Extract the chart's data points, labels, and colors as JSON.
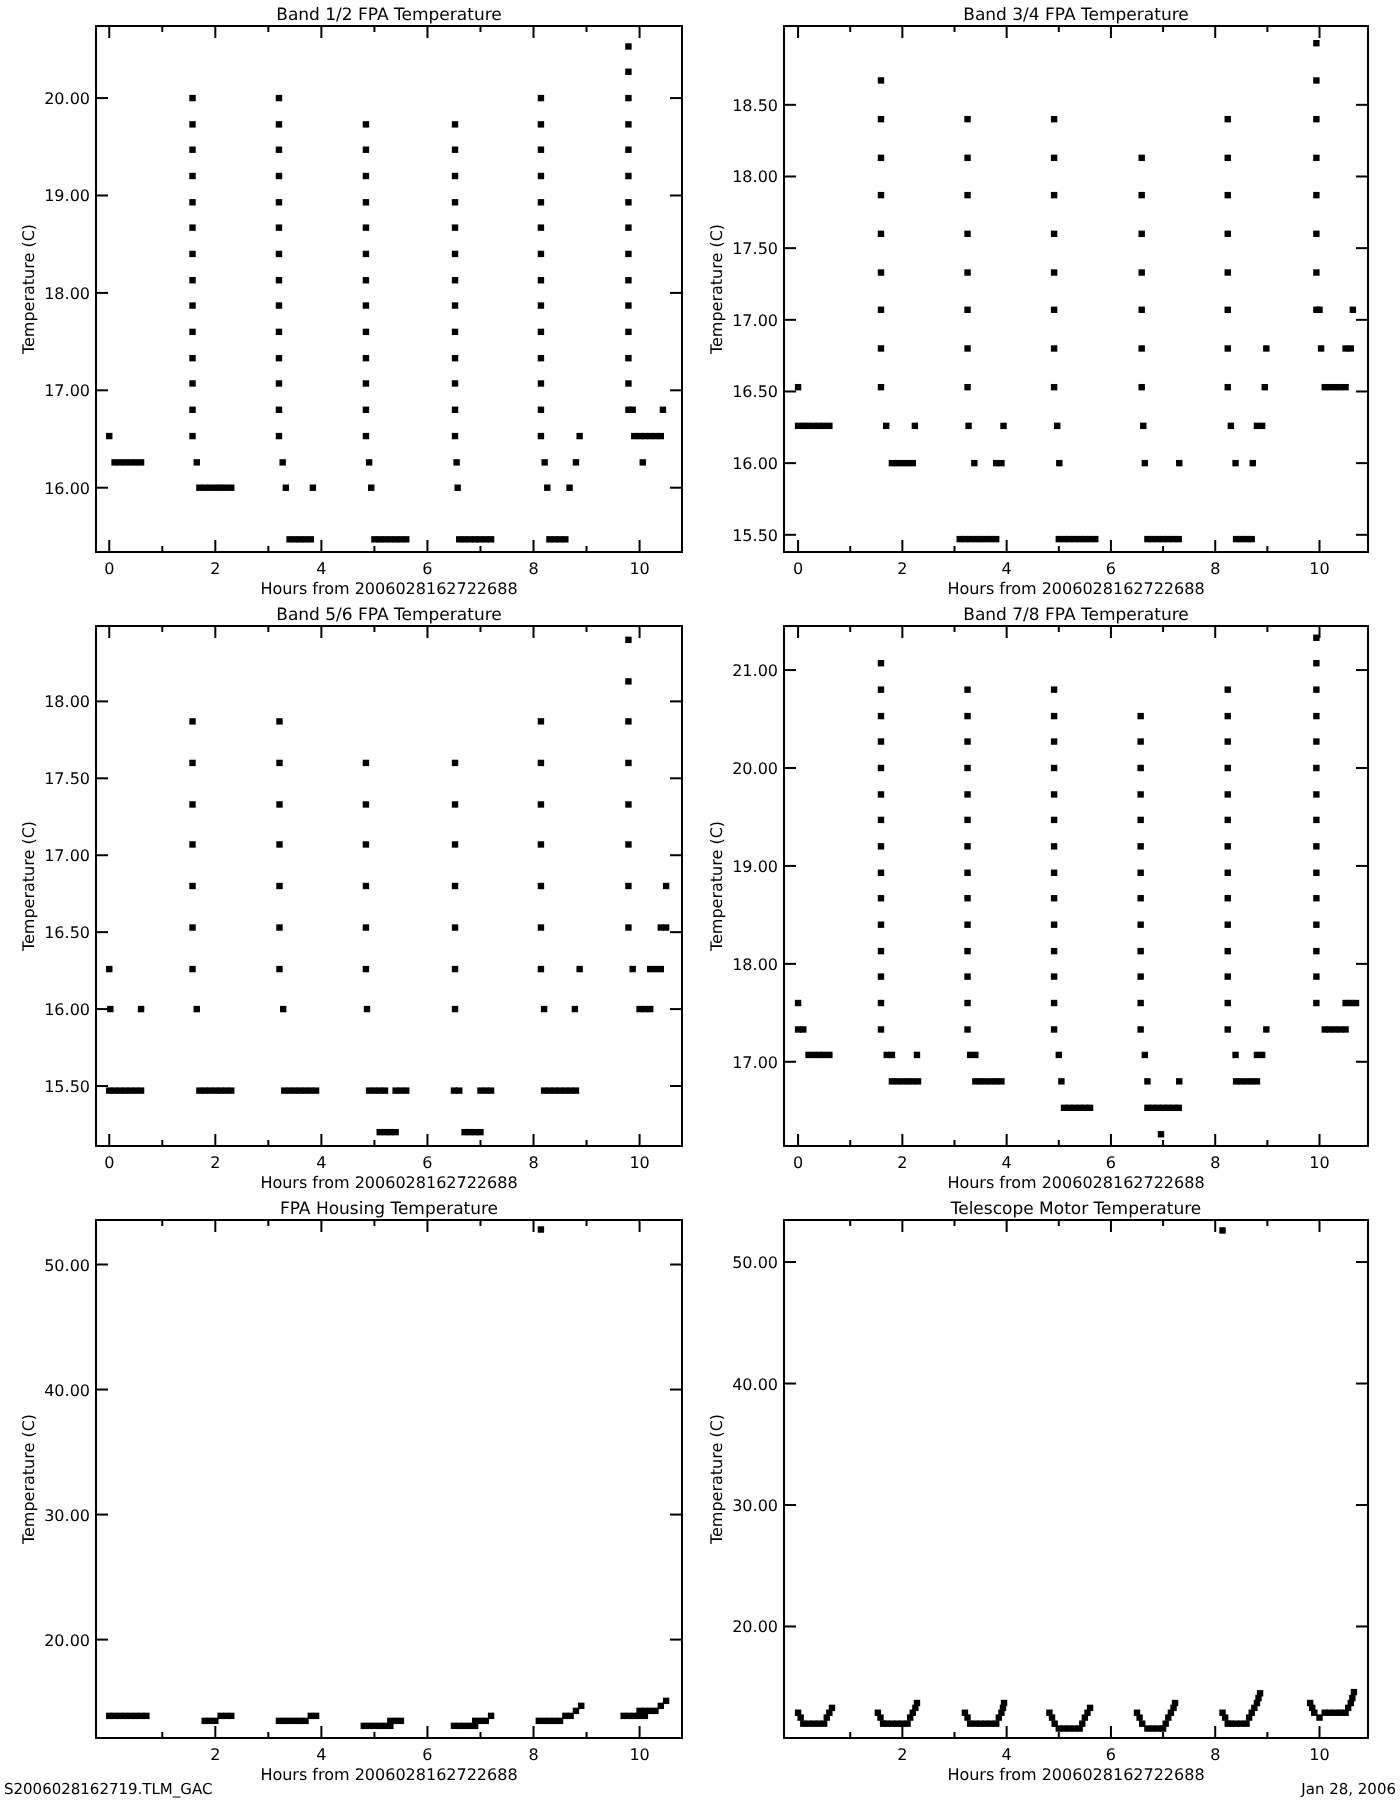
{
  "chart_data": [
    {
      "type": "scatter",
      "title": "Band 1/2 FPA Temperature",
      "xlabel": "Hours from 2006028162722688",
      "ylabel": "Temperature (C)",
      "marker": "square",
      "xlim": [
        -0.25,
        10.8
      ],
      "ylim": [
        15.34,
        20.74
      ],
      "xticks": [
        0,
        {
          "value": 1,
          "label": null
        },
        2,
        {
          "value": 3,
          "label": null
        },
        4,
        {
          "value": 5,
          "label": null
        },
        6,
        {
          "value": 7,
          "label": null
        },
        8,
        {
          "value": 9,
          "label": null
        },
        10
      ],
      "yticks": [
        {
          "value": 16,
          "label": "16.00"
        },
        {
          "value": 17,
          "label": "17.00"
        },
        {
          "value": 18,
          "label": "18.00"
        },
        {
          "value": 19,
          "label": "19.00"
        },
        {
          "value": 20,
          "label": "20.00"
        }
      ],
      "series": [
        {
          "color": "#000000",
          "x": [
            0,
            0.1,
            0.2,
            0.3,
            0.4,
            0.5,
            0.6,
            1.57,
            1.57,
            1.57,
            1.57,
            1.57,
            1.57,
            1.57,
            1.57,
            1.57,
            1.57,
            1.57,
            1.57,
            1.57,
            1.57,
            1.65,
            1.7,
            1.8,
            1.9,
            2.0,
            2.1,
            2.2,
            2.3,
            3.2,
            3.2,
            3.2,
            3.2,
            3.2,
            3.2,
            3.2,
            3.2,
            3.2,
            3.2,
            3.2,
            3.2,
            3.2,
            3.2,
            3.27,
            3.33,
            3.84,
            3.4,
            3.5,
            3.6,
            3.7,
            3.8,
            4.84,
            4.84,
            4.84,
            4.84,
            4.84,
            4.84,
            4.84,
            4.84,
            4.84,
            4.84,
            4.84,
            4.84,
            4.84,
            4.9,
            4.94,
            5.0,
            5.1,
            5.2,
            5.3,
            5.4,
            5.5,
            5.6,
            6.52,
            6.52,
            6.52,
            6.52,
            6.52,
            6.52,
            6.52,
            6.52,
            6.52,
            6.52,
            6.52,
            6.52,
            6.52,
            6.55,
            6.57,
            6.6,
            6.7,
            6.8,
            6.9,
            7.0,
            7.1,
            7.2,
            8.14,
            8.14,
            8.14,
            8.14,
            8.14,
            8.14,
            8.14,
            8.14,
            8.14,
            8.14,
            8.14,
            8.14,
            8.14,
            8.14,
            8.21,
            8.26,
            8.3,
            8.4,
            8.5,
            8.6,
            8.68,
            8.8,
            8.87,
            9.79,
            9.79,
            9.79,
            9.79,
            9.79,
            9.79,
            9.79,
            9.79,
            9.79,
            9.79,
            9.79,
            9.79,
            9.79,
            9.79,
            9.79,
            9.87,
            9.9,
            10.0,
            10.1,
            10.2,
            10.3,
            10.4,
            10.06,
            10.44
          ],
          "values": [
            16.53,
            16.26,
            16.26,
            16.26,
            16.26,
            16.26,
            16.26,
            16.53,
            16.8,
            17.07,
            17.33,
            17.6,
            17.87,
            18.13,
            18.4,
            18.67,
            18.93,
            19.2,
            19.47,
            19.73,
            20.0,
            16.26,
            16.0,
            16.0,
            16.0,
            16.0,
            16.0,
            16.0,
            16.0,
            16.53,
            16.8,
            17.07,
            17.33,
            17.6,
            17.87,
            18.13,
            18.4,
            18.67,
            18.93,
            19.2,
            19.47,
            19.73,
            20.0,
            16.26,
            16.0,
            16.0,
            15.47,
            15.47,
            15.47,
            15.47,
            15.47,
            16.53,
            16.8,
            17.07,
            17.33,
            17.6,
            17.87,
            18.13,
            18.4,
            18.67,
            18.93,
            19.2,
            19.47,
            19.73,
            16.26,
            16.0,
            15.47,
            15.47,
            15.47,
            15.47,
            15.47,
            15.47,
            15.47,
            16.53,
            16.8,
            17.07,
            17.33,
            17.6,
            17.87,
            18.13,
            18.4,
            18.67,
            18.93,
            19.2,
            19.47,
            19.73,
            16.26,
            16.0,
            15.47,
            15.47,
            15.47,
            15.47,
            15.47,
            15.47,
            15.47,
            16.53,
            16.8,
            17.07,
            17.33,
            17.6,
            17.87,
            18.13,
            18.4,
            18.67,
            18.93,
            19.2,
            19.47,
            19.73,
            20.0,
            16.26,
            16.0,
            15.47,
            15.47,
            15.47,
            15.47,
            16.0,
            16.26,
            16.53,
            16.8,
            17.07,
            17.33,
            17.6,
            17.87,
            18.13,
            18.4,
            18.67,
            18.93,
            19.2,
            19.47,
            19.73,
            20.0,
            20.27,
            20.53,
            16.8,
            16.53,
            16.53,
            16.53,
            16.53,
            16.53,
            16.53,
            16.26,
            16.8
          ]
        }
      ]
    },
    {
      "type": "scatter",
      "title": "Band 3/4 FPA Temperature",
      "xlabel": "Hours from 2006028162722688",
      "ylabel": "Temperature (C)",
      "marker": "square",
      "xlim": [
        -0.27,
        10.93
      ],
      "ylim": [
        15.38,
        19.05
      ],
      "xticks": [
        0,
        {
          "value": 1,
          "label": null
        },
        2,
        {
          "value": 3,
          "label": null
        },
        4,
        {
          "value": 5,
          "label": null
        },
        6,
        {
          "value": 7,
          "label": null
        },
        8,
        {
          "value": 9,
          "label": null
        },
        10
      ],
      "yticks": [
        {
          "value": 15.5,
          "label": "15.50"
        },
        {
          "value": 16,
          "label": "16.00"
        },
        {
          "value": 16.5,
          "label": "16.50"
        },
        {
          "value": 17,
          "label": "17.00"
        },
        {
          "value": 17.5,
          "label": "17.50"
        },
        {
          "value": 18,
          "label": "18.00"
        },
        {
          "value": 18.5,
          "label": "18.50"
        }
      ],
      "series": [
        {
          "color": "#000000",
          "x": [
            0,
            0,
            0.1,
            0.2,
            0.3,
            0.4,
            0.5,
            0.6,
            1.59,
            1.59,
            1.59,
            1.59,
            1.59,
            1.59,
            1.59,
            1.59,
            1.59,
            1.69,
            1.8,
            1.9,
            2.0,
            2.1,
            2.2,
            2.24,
            3.25,
            3.25,
            3.25,
            3.25,
            3.25,
            3.25,
            3.25,
            3.25,
            3.27,
            3.38,
            3.8,
            3.9,
            3.94,
            3.1,
            3.2,
            3.3,
            3.4,
            3.5,
            3.6,
            3.7,
            3.8,
            4.91,
            4.91,
            4.91,
            4.91,
            4.91,
            4.91,
            4.91,
            4.91,
            4.97,
            5.01,
            5.0,
            5.1,
            5.2,
            5.3,
            5.4,
            5.5,
            5.6,
            5.7,
            6.59,
            6.59,
            6.59,
            6.59,
            6.59,
            6.59,
            6.59,
            6.62,
            6.65,
            7.31,
            6.7,
            6.8,
            6.9,
            7.0,
            7.1,
            7.2,
            7.3,
            8.24,
            8.24,
            8.24,
            8.24,
            8.24,
            8.24,
            8.24,
            8.24,
            8.3,
            8.39,
            8.72,
            8.4,
            8.5,
            8.6,
            8.7,
            8.8,
            8.9,
            8.95,
            8.98,
            9.94,
            9.94,
            9.94,
            9.94,
            9.94,
            9.94,
            9.94,
            9.94,
            10.0,
            10.03,
            10.1,
            10.2,
            10.3,
            10.4,
            10.5,
            10.5,
            10.6,
            10.64
          ],
          "values": [
            16.53,
            16.26,
            16.26,
            16.26,
            16.26,
            16.26,
            16.26,
            16.26,
            16.53,
            16.8,
            17.07,
            17.33,
            17.6,
            17.87,
            18.13,
            18.4,
            18.67,
            16.26,
            16.0,
            16.0,
            16.0,
            16.0,
            16.0,
            16.26,
            16.53,
            16.8,
            17.07,
            17.33,
            17.6,
            17.87,
            18.13,
            18.4,
            16.26,
            16.0,
            16.0,
            16.0,
            16.26,
            15.47,
            15.47,
            15.47,
            15.47,
            15.47,
            15.47,
            15.47,
            15.47,
            16.53,
            16.8,
            17.07,
            17.33,
            17.6,
            17.87,
            18.13,
            18.4,
            16.26,
            16.0,
            15.47,
            15.47,
            15.47,
            15.47,
            15.47,
            15.47,
            15.47,
            15.47,
            16.53,
            16.8,
            17.07,
            17.33,
            17.6,
            17.87,
            18.13,
            16.26,
            16.0,
            16.0,
            15.47,
            15.47,
            15.47,
            15.47,
            15.47,
            15.47,
            15.47,
            16.53,
            16.8,
            17.07,
            17.33,
            17.6,
            17.87,
            18.13,
            18.4,
            16.26,
            16.0,
            16.0,
            15.47,
            15.47,
            15.47,
            15.47,
            16.26,
            16.26,
            16.53,
            16.8,
            17.07,
            17.33,
            17.6,
            17.87,
            18.13,
            18.4,
            18.67,
            18.93,
            17.07,
            16.8,
            16.53,
            16.53,
            16.53,
            16.53,
            16.53,
            16.8,
            16.8,
            17.07
          ]
        }
      ]
    },
    {
      "type": "scatter",
      "title": "Band 5/6 FPA Temperature",
      "xlabel": "Hours from 2006028162722688",
      "ylabel": "Temperature (C)",
      "marker": "square",
      "xlim": [
        -0.25,
        10.8
      ],
      "ylim": [
        15.11,
        18.49
      ],
      "xticks": [
        0,
        {
          "value": 1,
          "label": null
        },
        2,
        {
          "value": 3,
          "label": null
        },
        4,
        {
          "value": 5,
          "label": null
        },
        6,
        {
          "value": 7,
          "label": null
        },
        8,
        {
          "value": 9,
          "label": null
        },
        10
      ],
      "yticks": [
        {
          "value": 15.5,
          "label": "15.50"
        },
        {
          "value": 16,
          "label": "16.00"
        },
        {
          "value": 16.5,
          "label": "16.50"
        },
        {
          "value": 17,
          "label": "17.00"
        },
        {
          "value": 17.5,
          "label": "17.50"
        },
        {
          "value": 18,
          "label": "18.00"
        }
      ],
      "series": [
        {
          "color": "#000000",
          "x": [
            0,
            0.02,
            0.6,
            0.0,
            0.1,
            0.2,
            0.3,
            0.4,
            0.5,
            0.6,
            1.57,
            1.57,
            1.57,
            1.57,
            1.57,
            1.57,
            1.57,
            1.65,
            1.7,
            1.8,
            1.9,
            2.0,
            2.1,
            2.2,
            2.3,
            3.21,
            3.21,
            3.21,
            3.21,
            3.21,
            3.21,
            3.21,
            3.28,
            3.3,
            3.4,
            3.5,
            3.6,
            3.7,
            3.8,
            3.9,
            4.84,
            4.84,
            4.84,
            4.84,
            4.84,
            4.84,
            4.86,
            4.9,
            5.0,
            5.1,
            5.2,
            5.4,
            5.5,
            5.6,
            5.1,
            5.2,
            5.3,
            5.4,
            6.52,
            6.52,
            6.52,
            6.52,
            6.52,
            6.52,
            6.52,
            6.5,
            6.6,
            7.0,
            7.1,
            7.2,
            6.7,
            6.8,
            6.9,
            7.0,
            8.14,
            8.14,
            8.14,
            8.14,
            8.14,
            8.14,
            8.14,
            8.2,
            8.2,
            8.3,
            8.4,
            8.5,
            8.6,
            8.7,
            8.8,
            8.78,
            8.87,
            9.79,
            9.79,
            9.79,
            9.79,
            9.79,
            9.79,
            9.79,
            9.79,
            9.87,
            10.0,
            10.1,
            10.2,
            10.2,
            10.3,
            10.4,
            10.4,
            10.5,
            10.5
          ],
          "values": [
            16.26,
            16.0,
            16.0,
            15.47,
            15.47,
            15.47,
            15.47,
            15.47,
            15.47,
            15.47,
            16.26,
            16.53,
            16.8,
            17.07,
            17.33,
            17.6,
            17.87,
            16.0,
            15.47,
            15.47,
            15.47,
            15.47,
            15.47,
            15.47,
            15.47,
            16.26,
            16.53,
            16.8,
            17.07,
            17.33,
            17.6,
            17.87,
            16.0,
            15.47,
            15.47,
            15.47,
            15.47,
            15.47,
            15.47,
            15.47,
            16.26,
            16.53,
            16.8,
            17.07,
            17.33,
            17.6,
            16.0,
            15.47,
            15.47,
            15.47,
            15.47,
            15.47,
            15.47,
            15.47,
            15.2,
            15.2,
            15.2,
            15.2,
            16.0,
            16.26,
            16.53,
            16.8,
            17.07,
            17.33,
            17.6,
            15.47,
            15.47,
            15.47,
            15.47,
            15.47,
            15.2,
            15.2,
            15.2,
            15.2,
            16.26,
            16.53,
            16.8,
            17.07,
            17.33,
            17.6,
            17.87,
            16.0,
            15.47,
            15.47,
            15.47,
            15.47,
            15.47,
            15.47,
            15.47,
            16.0,
            16.26,
            16.53,
            16.8,
            17.07,
            17.33,
            17.6,
            17.87,
            18.13,
            18.4,
            16.26,
            16.0,
            16.0,
            16.0,
            16.26,
            16.26,
            16.26,
            16.53,
            16.53,
            16.8
          ]
        }
      ]
    },
    {
      "type": "scatter",
      "title": "Band 7/8 FPA Temperature",
      "xlabel": "Hours from 2006028162722688",
      "ylabel": "Temperature (C)",
      "marker": "square",
      "xlim": [
        -0.27,
        10.93
      ],
      "ylim": [
        16.14,
        21.45
      ],
      "xticks": [
        0,
        {
          "value": 1,
          "label": null
        },
        2,
        {
          "value": 3,
          "label": null
        },
        4,
        {
          "value": 5,
          "label": null
        },
        6,
        {
          "value": 7,
          "label": null
        },
        8,
        {
          "value": 9,
          "label": null
        },
        10
      ],
      "yticks": [
        {
          "value": 17,
          "label": "17.00"
        },
        {
          "value": 18,
          "label": "18.00"
        },
        {
          "value": 19,
          "label": "19.00"
        },
        {
          "value": 20,
          "label": "20.00"
        },
        {
          "value": 21,
          "label": "21.00"
        }
      ],
      "series": [
        {
          "color": "#000000",
          "x": [
            0,
            0.0,
            0.1,
            0.2,
            0.3,
            0.4,
            0.5,
            0.6,
            1.59,
            1.59,
            1.59,
            1.59,
            1.59,
            1.59,
            1.59,
            1.59,
            1.59,
            1.59,
            1.59,
            1.59,
            1.59,
            1.59,
            1.59,
            1.7,
            1.8,
            1.8,
            1.9,
            2.0,
            2.1,
            2.2,
            2.3,
            2.28,
            3.25,
            3.25,
            3.25,
            3.25,
            3.25,
            3.25,
            3.25,
            3.25,
            3.25,
            3.25,
            3.25,
            3.25,
            3.25,
            3.25,
            3.3,
            3.4,
            3.4,
            3.5,
            3.6,
            3.7,
            3.8,
            3.9,
            4.91,
            4.91,
            4.91,
            4.91,
            4.91,
            4.91,
            4.91,
            4.91,
            4.91,
            4.91,
            4.91,
            4.91,
            4.91,
            4.91,
            5.0,
            5.05,
            5.1,
            5.2,
            5.3,
            5.4,
            5.5,
            5.6,
            6.57,
            6.57,
            6.57,
            6.57,
            6.57,
            6.57,
            6.57,
            6.57,
            6.57,
            6.57,
            6.57,
            6.57,
            6.57,
            6.65,
            6.7,
            7.31,
            6.7,
            6.8,
            6.9,
            7.0,
            7.1,
            7.2,
            7.3,
            6.96,
            8.24,
            8.24,
            8.24,
            8.24,
            8.24,
            8.24,
            8.24,
            8.24,
            8.24,
            8.24,
            8.24,
            8.24,
            8.24,
            8.24,
            8.39,
            8.4,
            8.5,
            8.6,
            8.7,
            8.8,
            8.8,
            8.9,
            8.98,
            9.94,
            9.94,
            9.94,
            9.94,
            9.94,
            9.94,
            9.94,
            9.94,
            9.94,
            9.94,
            9.94,
            9.94,
            9.94,
            9.94,
            9.94,
            10.1,
            10.2,
            10.3,
            10.4,
            10.5,
            10.5,
            10.6,
            10.7
          ],
          "values": [
            17.6,
            17.33,
            17.33,
            17.07,
            17.07,
            17.07,
            17.07,
            17.07,
            17.33,
            17.6,
            17.87,
            18.13,
            18.4,
            18.67,
            18.93,
            19.2,
            19.47,
            19.73,
            20.0,
            20.27,
            20.53,
            20.8,
            21.07,
            17.07,
            17.07,
            16.8,
            16.8,
            16.8,
            16.8,
            16.8,
            16.8,
            17.07,
            17.33,
            17.6,
            17.87,
            18.13,
            18.4,
            18.67,
            18.93,
            19.2,
            19.47,
            19.73,
            20.0,
            20.27,
            20.53,
            20.8,
            17.07,
            17.07,
            16.8,
            16.8,
            16.8,
            16.8,
            16.8,
            16.8,
            17.33,
            17.6,
            17.87,
            18.13,
            18.4,
            18.67,
            18.93,
            19.2,
            19.47,
            19.73,
            20.0,
            20.27,
            20.53,
            20.8,
            17.07,
            16.8,
            16.53,
            16.53,
            16.53,
            16.53,
            16.53,
            16.53,
            17.33,
            17.6,
            17.87,
            18.13,
            18.4,
            18.67,
            18.93,
            19.2,
            19.47,
            19.73,
            20.0,
            20.27,
            20.53,
            17.07,
            16.8,
            16.8,
            16.53,
            16.53,
            16.53,
            16.53,
            16.53,
            16.53,
            16.53,
            16.26,
            17.33,
            17.6,
            17.87,
            18.13,
            18.4,
            18.67,
            18.93,
            19.2,
            19.47,
            19.73,
            20.0,
            20.27,
            20.53,
            20.8,
            17.07,
            16.8,
            16.8,
            16.8,
            16.8,
            16.8,
            17.07,
            17.07,
            17.33,
            17.6,
            17.87,
            18.13,
            18.4,
            18.67,
            18.93,
            19.2,
            19.47,
            19.73,
            20.0,
            20.27,
            20.53,
            20.8,
            21.07,
            21.33,
            17.33,
            17.33,
            17.33,
            17.33,
            17.33,
            17.6,
            17.6,
            17.6
          ]
        }
      ]
    },
    {
      "type": "scatter",
      "title": "FPA Housing Temperature",
      "xlabel": "Hours from 2006028162722688",
      "ylabel": "Temperature (C)",
      "marker": "square",
      "xlim": [
        -0.25,
        10.8
      ],
      "ylim": [
        12.13,
        53.56
      ],
      "xticks": [
        {
          "value": 1,
          "label": null
        },
        2,
        {
          "value": 3,
          "label": null
        },
        4,
        {
          "value": 5,
          "label": null
        },
        6,
        {
          "value": 7,
          "label": null
        },
        8,
        {
          "value": 9,
          "label": null
        },
        10
      ],
      "yticks": [
        {
          "value": 20,
          "label": "20.00"
        },
        {
          "value": 30,
          "label": "30.00"
        },
        {
          "value": 40,
          "label": "40.00"
        },
        {
          "value": 50,
          "label": "50.00"
        }
      ],
      "annotations": [
        "S2006028162719.TLM_GAC"
      ],
      "series": [
        {
          "color": "#000000",
          "x": [
            0.0,
            0.1,
            0.2,
            0.3,
            0.4,
            0.5,
            0.6,
            0.7,
            1.8,
            1.9,
            2.0,
            2.1,
            2.2,
            2.3,
            3.2,
            3.3,
            3.4,
            3.5,
            3.6,
            3.7,
            3.8,
            3.9,
            4.8,
            4.9,
            5.0,
            5.1,
            5.2,
            5.3,
            5.3,
            5.4,
            5.5,
            6.5,
            6.6,
            6.7,
            6.8,
            6.9,
            6.9,
            7.0,
            7.1,
            7.2,
            8.1,
            8.2,
            8.3,
            8.4,
            8.5,
            8.6,
            8.7,
            8.8,
            8.9,
            9.7,
            9.8,
            9.9,
            10.0,
            10.1,
            10.0,
            10.1,
            10.2,
            10.3,
            10.4,
            10.5,
            8.14
          ],
          "values": [
            13.9,
            13.9,
            13.9,
            13.9,
            13.9,
            13.9,
            13.9,
            13.9,
            13.5,
            13.5,
            13.5,
            13.9,
            13.9,
            13.9,
            13.5,
            13.5,
            13.5,
            13.5,
            13.5,
            13.5,
            13.9,
            13.9,
            13.1,
            13.1,
            13.1,
            13.1,
            13.1,
            13.1,
            13.5,
            13.5,
            13.5,
            13.1,
            13.1,
            13.1,
            13.1,
            13.1,
            13.5,
            13.5,
            13.5,
            13.9,
            13.5,
            13.5,
            13.5,
            13.5,
            13.5,
            13.9,
            13.9,
            14.3,
            14.7,
            13.9,
            13.9,
            13.9,
            13.9,
            13.9,
            14.3,
            14.3,
            14.3,
            14.3,
            14.7,
            15.1,
            52.8
          ]
        }
      ]
    },
    {
      "type": "scatter",
      "title": "Telescope Motor Temperature",
      "xlabel": "Hours from 2006028162722688",
      "ylabel": "Temperature (C)",
      "marker": "square",
      "xlim": [
        -0.27,
        10.93
      ],
      "ylim": [
        10.82,
        53.46
      ],
      "xticks": [
        {
          "value": 1,
          "label": null
        },
        2,
        {
          "value": 3,
          "label": null
        },
        4,
        {
          "value": 5,
          "label": null
        },
        6,
        {
          "value": 7,
          "label": null
        },
        8,
        {
          "value": 9,
          "label": null
        },
        10
      ],
      "yticks": [
        {
          "value": 20,
          "label": "20.00"
        },
        {
          "value": 30,
          "label": "30.00"
        },
        {
          "value": 40,
          "label": "40.00"
        },
        {
          "value": 50,
          "label": "50.00"
        }
      ],
      "annotations": [
        "Jan 28, 2006"
      ],
      "series": [
        {
          "color": "#000000",
          "x": [
            0,
            0.05,
            0.1,
            0.2,
            0.3,
            0.4,
            0.5,
            0.55,
            0.6,
            0.65,
            1.53,
            1.58,
            1.63,
            1.7,
            1.8,
            1.9,
            2.0,
            2.1,
            2.15,
            2.2,
            2.25,
            2.28,
            3.2,
            3.25,
            3.3,
            3.4,
            3.5,
            3.6,
            3.7,
            3.8,
            3.85,
            3.9,
            3.93,
            3.95,
            4.82,
            4.87,
            4.92,
            5.0,
            5.1,
            5.2,
            5.3,
            5.4,
            5.45,
            5.5,
            5.55,
            5.6,
            6.5,
            6.55,
            6.6,
            6.7,
            6.8,
            6.9,
            7.0,
            7.05,
            7.1,
            7.15,
            7.2,
            7.23,
            8.14,
            8.19,
            8.24,
            8.3,
            8.4,
            8.5,
            8.6,
            8.65,
            8.7,
            8.75,
            8.8,
            8.83,
            8.86,
            9.82,
            9.86,
            9.9,
            10.0,
            10.1,
            10.2,
            10.3,
            10.4,
            10.5,
            10.55,
            10.6,
            10.63,
            10.66,
            8.14
          ],
          "values": [
            12.9,
            12.5,
            12.0,
            12.0,
            12.0,
            12.0,
            12.0,
            12.5,
            12.9,
            13.3,
            12.9,
            12.5,
            12.0,
            12.0,
            12.0,
            12.0,
            12.0,
            12.0,
            12.5,
            12.9,
            13.3,
            13.7,
            12.9,
            12.5,
            12.0,
            12.0,
            12.0,
            12.0,
            12.0,
            12.0,
            12.5,
            12.9,
            13.3,
            13.7,
            12.9,
            12.5,
            12.0,
            11.6,
            11.6,
            11.6,
            11.6,
            11.6,
            12.0,
            12.5,
            12.9,
            13.3,
            12.9,
            12.5,
            12.0,
            11.6,
            11.6,
            11.6,
            11.6,
            12.0,
            12.5,
            12.9,
            13.3,
            13.7,
            12.9,
            12.5,
            12.0,
            12.0,
            12.0,
            12.0,
            12.0,
            12.5,
            12.9,
            13.3,
            13.7,
            14.1,
            14.5,
            13.7,
            13.3,
            12.9,
            12.5,
            12.9,
            12.9,
            12.9,
            12.9,
            12.9,
            13.3,
            13.7,
            14.1,
            14.6,
            52.6
          ]
        }
      ]
    }
  ]
}
